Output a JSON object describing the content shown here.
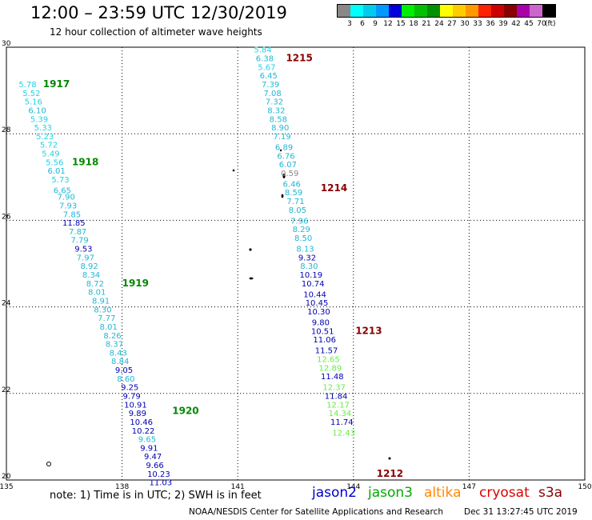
{
  "header": {
    "title": "12:00 – 23:59 UTC 12/30/2019",
    "subtitle": "12 hour collection of altimeter wave heights"
  },
  "legend": {
    "colors": [
      "#888888",
      "#00ffff",
      "#00ccee",
      "#0099ff",
      "#0000dd",
      "#00ee00",
      "#00c000",
      "#009000",
      "#ffff00",
      "#ffcc00",
      "#ff9900",
      "#ff2200",
      "#cc0000",
      "#880000",
      "#aa00aa",
      "#cc66cc",
      "#000000"
    ],
    "labels": [
      {
        "text": "3",
        "at": 1
      },
      {
        "text": "6",
        "at": 2
      },
      {
        "text": "9",
        "at": 3
      },
      {
        "text": "12",
        "at": 4
      },
      {
        "text": "15",
        "at": 5
      },
      {
        "text": "18",
        "at": 6
      },
      {
        "text": "21",
        "at": 7
      },
      {
        "text": "24",
        "at": 8
      },
      {
        "text": "27",
        "at": 9
      },
      {
        "text": "30",
        "at": 10
      },
      {
        "text": "33",
        "at": 11
      },
      {
        "text": "36",
        "at": 12
      },
      {
        "text": "39",
        "at": 13
      },
      {
        "text": "42",
        "at": 14
      },
      {
        "text": "45",
        "at": 15
      },
      {
        "text": "70",
        "at": 16
      }
    ],
    "unit": "(ft)"
  },
  "axes": {
    "lon_ticks": [
      "135",
      "138",
      "141",
      "144",
      "147",
      "150"
    ],
    "lat_ticks": [
      "30",
      "28",
      "26",
      "24",
      "22",
      "20"
    ]
  },
  "colors": {
    "cyan": "#21b7d3",
    "lightcyan": "#1fd3e6",
    "navy": "#0000b3",
    "lime": "#66ee44",
    "gray": "#888888",
    "pass_label_green": "#008800",
    "pass_label_maroon": "#880000"
  },
  "observations": [
    {
      "lon": 135.55,
      "lat": 29.15,
      "v": "5.78",
      "c": "lightcyan"
    },
    {
      "lon": 135.65,
      "lat": 28.95,
      "v": "5.52",
      "c": "lightcyan"
    },
    {
      "lon": 135.7,
      "lat": 28.75,
      "v": "5.16",
      "c": "lightcyan"
    },
    {
      "lon": 135.8,
      "lat": 28.55,
      "v": "6.10",
      "c": "cyan"
    },
    {
      "lon": 135.85,
      "lat": 28.35,
      "v": "5.39",
      "c": "lightcyan"
    },
    {
      "lon": 135.95,
      "lat": 28.15,
      "v": "5.33",
      "c": "lightcyan"
    },
    {
      "lon": 136.0,
      "lat": 27.95,
      "v": "5.23",
      "c": "lightcyan"
    },
    {
      "lon": 136.1,
      "lat": 27.75,
      "v": "5.72",
      "c": "lightcyan"
    },
    {
      "lon": 136.15,
      "lat": 27.55,
      "v": "5.49",
      "c": "lightcyan"
    },
    {
      "lon": 136.25,
      "lat": 27.35,
      "v": "5.56",
      "c": "lightcyan"
    },
    {
      "lon": 136.3,
      "lat": 27.15,
      "v": "6.01",
      "c": "cyan"
    },
    {
      "lon": 136.4,
      "lat": 26.95,
      "v": "5.73",
      "c": "lightcyan"
    },
    {
      "lon": 136.45,
      "lat": 26.7,
      "v": "6.65",
      "c": "cyan"
    },
    {
      "lon": 136.55,
      "lat": 26.55,
      "v": "7.90",
      "c": "cyan"
    },
    {
      "lon": 136.6,
      "lat": 26.35,
      "v": "7.93",
      "c": "cyan"
    },
    {
      "lon": 136.7,
      "lat": 26.15,
      "v": "7.85",
      "c": "cyan"
    },
    {
      "lon": 136.75,
      "lat": 25.95,
      "v": "11.85",
      "c": "navy"
    },
    {
      "lon": 136.85,
      "lat": 25.75,
      "v": "7.87",
      "c": "cyan"
    },
    {
      "lon": 136.9,
      "lat": 25.55,
      "v": "7.79",
      "c": "cyan"
    },
    {
      "lon": 137.0,
      "lat": 25.35,
      "v": "9.53",
      "c": "navy"
    },
    {
      "lon": 137.05,
      "lat": 25.15,
      "v": "7.97",
      "c": "cyan"
    },
    {
      "lon": 137.15,
      "lat": 24.95,
      "v": "8.92",
      "c": "cyan"
    },
    {
      "lon": 137.2,
      "lat": 24.75,
      "v": "8.34",
      "c": "cyan"
    },
    {
      "lon": 137.3,
      "lat": 24.55,
      "v": "8.72",
      "c": "cyan"
    },
    {
      "lon": 137.35,
      "lat": 24.35,
      "v": "8.01",
      "c": "cyan"
    },
    {
      "lon": 137.45,
      "lat": 24.15,
      "v": "8.91",
      "c": "cyan"
    },
    {
      "lon": 137.5,
      "lat": 23.95,
      "v": "8.30",
      "c": "cyan"
    },
    {
      "lon": 137.6,
      "lat": 23.75,
      "v": "7.77",
      "c": "cyan"
    },
    {
      "lon": 137.65,
      "lat": 23.55,
      "v": "8.01",
      "c": "cyan"
    },
    {
      "lon": 137.75,
      "lat": 23.35,
      "v": "8.26",
      "c": "cyan"
    },
    {
      "lon": 137.8,
      "lat": 23.15,
      "v": "8.37",
      "c": "cyan"
    },
    {
      "lon": 137.9,
      "lat": 22.95,
      "v": "8.43",
      "c": "cyan"
    },
    {
      "lon": 137.95,
      "lat": 22.75,
      "v": "8.84",
      "c": "cyan"
    },
    {
      "lon": 138.05,
      "lat": 22.55,
      "v": "9.05",
      "c": "navy"
    },
    {
      "lon": 138.1,
      "lat": 22.35,
      "v": "8.60",
      "c": "cyan"
    },
    {
      "lon": 138.2,
      "lat": 22.15,
      "v": "9.25",
      "c": "navy"
    },
    {
      "lon": 138.25,
      "lat": 21.95,
      "v": "9.79",
      "c": "navy"
    },
    {
      "lon": 138.35,
      "lat": 21.75,
      "v": "10.91",
      "c": "navy"
    },
    {
      "lon": 138.4,
      "lat": 21.55,
      "v": "9.89",
      "c": "navy"
    },
    {
      "lon": 138.5,
      "lat": 21.35,
      "v": "10.46",
      "c": "navy"
    },
    {
      "lon": 138.55,
      "lat": 21.15,
      "v": "10.22",
      "c": "navy"
    },
    {
      "lon": 138.65,
      "lat": 20.95,
      "v": "9.65",
      "c": "cyan"
    },
    {
      "lon": 138.7,
      "lat": 20.75,
      "v": "9.91",
      "c": "navy"
    },
    {
      "lon": 138.8,
      "lat": 20.55,
      "v": "9.47",
      "c": "navy"
    },
    {
      "lon": 138.85,
      "lat": 20.35,
      "v": "9.66",
      "c": "navy"
    },
    {
      "lon": 138.95,
      "lat": 20.15,
      "v": "10.23",
      "c": "navy"
    },
    {
      "lon": 139.0,
      "lat": 19.95,
      "v": "11.03",
      "c": "navy"
    },
    {
      "lon": 141.65,
      "lat": 29.95,
      "v": "5.84",
      "c": "lightcyan"
    },
    {
      "lon": 141.7,
      "lat": 29.75,
      "v": "6.38",
      "c": "cyan"
    },
    {
      "lon": 141.75,
      "lat": 29.55,
      "v": "5.67",
      "c": "lightcyan"
    },
    {
      "lon": 141.8,
      "lat": 29.35,
      "v": "6.45",
      "c": "cyan"
    },
    {
      "lon": 141.85,
      "lat": 29.15,
      "v": "7.39",
      "c": "cyan"
    },
    {
      "lon": 141.9,
      "lat": 28.95,
      "v": "7.08",
      "c": "cyan"
    },
    {
      "lon": 141.95,
      "lat": 28.75,
      "v": "7.32",
      "c": "cyan"
    },
    {
      "lon": 142.0,
      "lat": 28.55,
      "v": "8.32",
      "c": "cyan"
    },
    {
      "lon": 142.05,
      "lat": 28.35,
      "v": "8.58",
      "c": "cyan"
    },
    {
      "lon": 142.1,
      "lat": 28.15,
      "v": "8.90",
      "c": "cyan"
    },
    {
      "lon": 142.15,
      "lat": 27.95,
      "v": "7.19",
      "c": "cyan"
    },
    {
      "lon": 142.2,
      "lat": 27.7,
      "v": "6.89",
      "c": "cyan"
    },
    {
      "lon": 142.25,
      "lat": 27.5,
      "v": "6.76",
      "c": "cyan"
    },
    {
      "lon": 142.3,
      "lat": 27.3,
      "v": "6.07",
      "c": "cyan"
    },
    {
      "lon": 142.35,
      "lat": 27.1,
      "v": "0.59",
      "c": "gray"
    },
    {
      "lon": 142.4,
      "lat": 26.85,
      "v": "6.46",
      "c": "cyan"
    },
    {
      "lon": 142.45,
      "lat": 26.65,
      "v": "8.59",
      "c": "cyan"
    },
    {
      "lon": 142.5,
      "lat": 26.45,
      "v": "7.71",
      "c": "cyan"
    },
    {
      "lon": 142.55,
      "lat": 26.25,
      "v": "8.05",
      "c": "cyan"
    },
    {
      "lon": 142.6,
      "lat": 26.0,
      "v": "7.96",
      "c": "cyan"
    },
    {
      "lon": 142.65,
      "lat": 25.8,
      "v": "8.29",
      "c": "cyan"
    },
    {
      "lon": 142.7,
      "lat": 25.6,
      "v": "8.50",
      "c": "cyan"
    },
    {
      "lon": 142.75,
      "lat": 25.35,
      "v": "8.13",
      "c": "cyan"
    },
    {
      "lon": 142.8,
      "lat": 25.15,
      "v": "9.32",
      "c": "navy"
    },
    {
      "lon": 142.85,
      "lat": 24.95,
      "v": "8.30",
      "c": "cyan"
    },
    {
      "lon": 142.9,
      "lat": 24.75,
      "v": "10.19",
      "c": "navy"
    },
    {
      "lon": 142.95,
      "lat": 24.55,
      "v": "10.74",
      "c": "navy"
    },
    {
      "lon": 143.0,
      "lat": 24.3,
      "v": "10.44",
      "c": "navy"
    },
    {
      "lon": 143.05,
      "lat": 24.1,
      "v": "10.45",
      "c": "navy"
    },
    {
      "lon": 143.1,
      "lat": 23.9,
      "v": "10.30",
      "c": "navy"
    },
    {
      "lon": 143.15,
      "lat": 23.65,
      "v": "9.80",
      "c": "navy"
    },
    {
      "lon": 143.2,
      "lat": 23.45,
      "v": "10.51",
      "c": "navy"
    },
    {
      "lon": 143.25,
      "lat": 23.25,
      "v": "11.06",
      "c": "navy"
    },
    {
      "lon": 143.3,
      "lat": 23.0,
      "v": "11.57",
      "c": "navy"
    },
    {
      "lon": 143.35,
      "lat": 22.8,
      "v": "12.65",
      "c": "lime"
    },
    {
      "lon": 143.4,
      "lat": 22.6,
      "v": "12.89",
      "c": "lime"
    },
    {
      "lon": 143.45,
      "lat": 22.4,
      "v": "11.48",
      "c": "navy"
    },
    {
      "lon": 143.5,
      "lat": 22.15,
      "v": "12.37",
      "c": "lime"
    },
    {
      "lon": 143.55,
      "lat": 21.95,
      "v": "11.84",
      "c": "navy"
    },
    {
      "lon": 143.6,
      "lat": 21.75,
      "v": "12.17",
      "c": "lime"
    },
    {
      "lon": 143.65,
      "lat": 21.55,
      "v": "14.34",
      "c": "lime"
    },
    {
      "lon": 143.7,
      "lat": 21.35,
      "v": "11.74",
      "c": "navy"
    },
    {
      "lon": 143.75,
      "lat": 21.1,
      "v": "12.43",
      "c": "lime"
    }
  ],
  "pass_labels": [
    {
      "text": "1917",
      "lon": 135.95,
      "lat": 29.15,
      "c": "pass_label_green"
    },
    {
      "text": "1918",
      "lon": 136.7,
      "lat": 27.35,
      "c": "pass_label_green"
    },
    {
      "text": "1919",
      "lon": 138.0,
      "lat": 24.55,
      "c": "pass_label_green"
    },
    {
      "text": "1920",
      "lon": 139.3,
      "lat": 21.6,
      "c": "pass_label_green"
    },
    {
      "text": "1215",
      "lon": 142.25,
      "lat": 29.75,
      "c": "pass_label_maroon"
    },
    {
      "text": "1214",
      "lon": 143.15,
      "lat": 26.75,
      "c": "pass_label_maroon"
    },
    {
      "text": "1213",
      "lon": 144.05,
      "lat": 23.45,
      "c": "pass_label_maroon"
    },
    {
      "text": "1212",
      "lon": 144.6,
      "lat": 20.15,
      "c": "pass_label_maroon"
    }
  ],
  "footer": {
    "note": "note:  1) Time is in UTC;  2) SWH is in feet",
    "satellites": [
      {
        "name": "jason2",
        "color": "#0000cc"
      },
      {
        "name": "jason3",
        "color": "#00aa00"
      },
      {
        "name": "altika",
        "color": "#ff8800"
      },
      {
        "name": "cryosat",
        "color": "#dd0000"
      },
      {
        "name": "s3a",
        "color": "#880000"
      }
    ],
    "credit": "NOAA/NESDIS Center for Satellite Applications and Research",
    "timestamp": "Dec 31 13:27:45 UTC 2019"
  }
}
